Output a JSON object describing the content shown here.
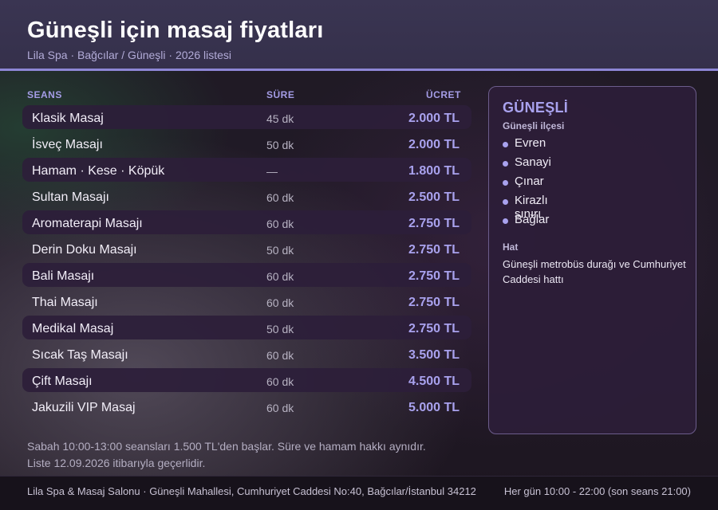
{
  "header": {
    "title": "Güneşli için masaj fiyatları",
    "subtitle": "Lila Spa · Bağcılar / Güneşli · 2026 listesi"
  },
  "table": {
    "columns": {
      "session": "SEANS",
      "duration": "SÜRE",
      "price": "ÜCRET"
    },
    "rows": [
      {
        "name": "Klasik Masaj",
        "duration": "45 dk",
        "price": "2.000 TL",
        "shaded": true
      },
      {
        "name": "İsveç Masajı",
        "duration": "50 dk",
        "price": "2.000 TL",
        "shaded": false
      },
      {
        "name": "Hamam · Kese · Köpük",
        "duration": "—",
        "price": "1.800 TL",
        "shaded": true
      },
      {
        "name": "Sultan Masajı",
        "duration": "60 dk",
        "price": "2.500 TL",
        "shaded": false
      },
      {
        "name": "Aromaterapi Masajı",
        "duration": "60 dk",
        "price": "2.750 TL",
        "shaded": true
      },
      {
        "name": "Derin Doku Masajı",
        "duration": "50 dk",
        "price": "2.750 TL",
        "shaded": false
      },
      {
        "name": "Bali Masajı",
        "duration": "60 dk",
        "price": "2.750 TL",
        "shaded": true
      },
      {
        "name": "Thai Masajı",
        "duration": "60 dk",
        "price": "2.750 TL",
        "shaded": false
      },
      {
        "name": "Medikal Masaj",
        "duration": "50 dk",
        "price": "2.750 TL",
        "shaded": true
      },
      {
        "name": "Sıcak Taş Masajı",
        "duration": "60 dk",
        "price": "3.500 TL",
        "shaded": false
      },
      {
        "name": "Çift Masajı",
        "duration": "60 dk",
        "price": "4.500 TL",
        "shaded": true
      },
      {
        "name": "Jakuzili VIP Masaj",
        "duration": "60 dk",
        "price": "5.000 TL",
        "shaded": false
      }
    ]
  },
  "notes": {
    "line1": "Sabah 10:00-13:00 seansları 1.500 TL'den başlar. Süre ve hamam hakkı aynıdır.",
    "line2": "Liste 12.09.2026 itibarıyla geçerlidir."
  },
  "sidebar": {
    "title": "GÜNEŞLİ",
    "subtitle": "Güneşli ilçesi",
    "neighborhoods": [
      "Evren",
      "Sanayi",
      "Çınar",
      "Kirazlı sınırı",
      "Bağlar"
    ],
    "hat_label": "Hat",
    "hat_text": "Güneşli metrobüs durağı ve Cumhuriyet Caddesi hattı"
  },
  "footer": {
    "address": "Lila Spa & Masaj Salonu · Güneşli Mahallesi, Cumhuriyet Caddesi No:40, Bağcılar/İstanbul 34212",
    "hours": "Her gün 10:00 - 22:00 (son seans 21:00)"
  },
  "colors": {
    "accent": "#a9a2ee",
    "header_bg": "#3a3552",
    "header_rule": "#8e86d6",
    "row_shade": "#2d1e3a",
    "card_border": "#6c5d8c"
  }
}
